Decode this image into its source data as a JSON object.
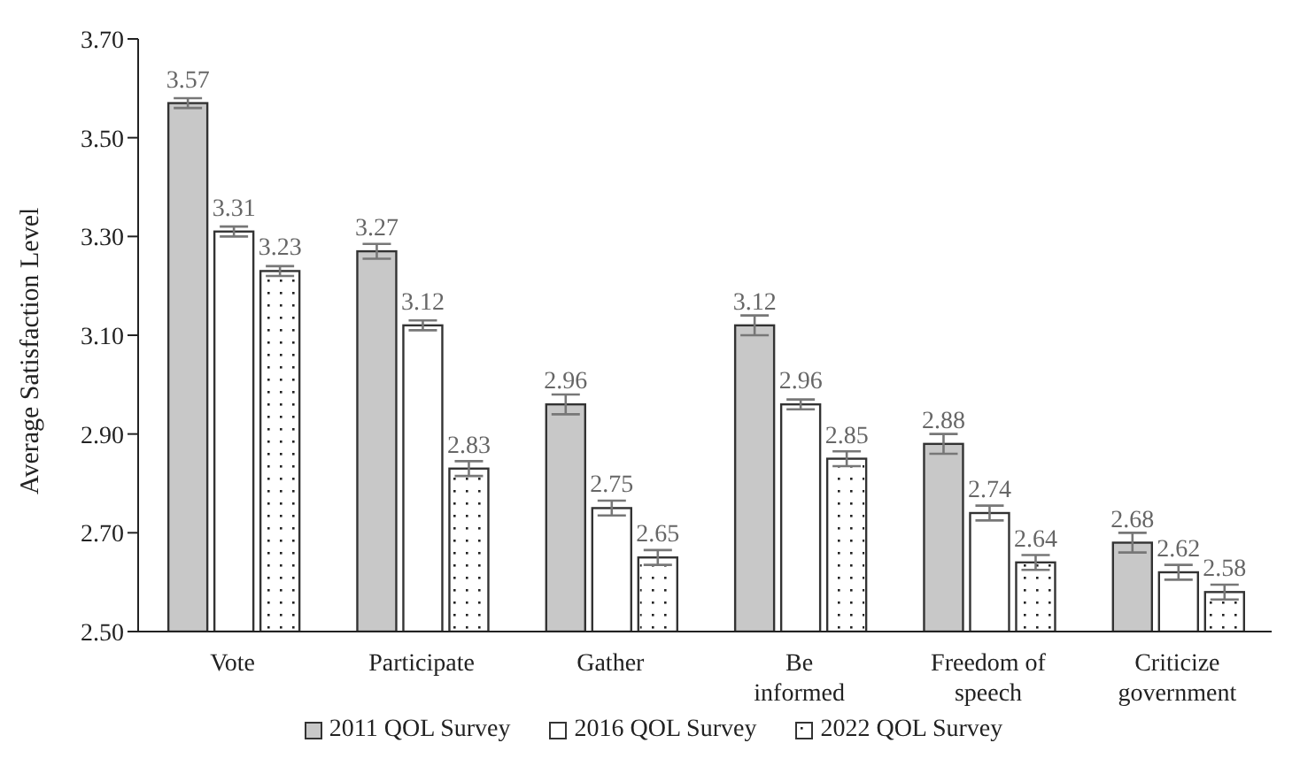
{
  "chart_data": {
    "type": "bar",
    "ylabel": "Average Satisfaction Level",
    "categories": [
      "Vote",
      "Participate",
      "Gather",
      "Be informed",
      "Freedom of speech",
      "Criticize government"
    ],
    "series": [
      {
        "name": "2011 QOL Survey",
        "color": "#c8c8c8",
        "values": [
          3.57,
          3.27,
          2.96,
          3.12,
          2.88,
          2.68
        ],
        "errors": [
          0.01,
          0.015,
          0.02,
          0.02,
          0.02,
          0.02
        ]
      },
      {
        "name": "2016 QOL Survey",
        "color": "#ffffff",
        "values": [
          3.31,
          3.12,
          2.75,
          2.96,
          2.74,
          2.62
        ],
        "errors": [
          0.01,
          0.01,
          0.015,
          0.01,
          0.015,
          0.015
        ]
      },
      {
        "name": "2022 QOL Survey",
        "color": "#ffffff",
        "values": [
          3.23,
          2.83,
          2.65,
          2.85,
          2.64,
          2.58
        ],
        "errors": [
          0.01,
          0.015,
          0.015,
          0.015,
          0.015,
          0.015
        ]
      }
    ],
    "ylim": [
      2.5,
      3.7
    ],
    "yticks": [
      {
        "value": 2.5,
        "label": "2.50"
      },
      {
        "value": 2.7,
        "label": "2.70"
      },
      {
        "value": 2.9,
        "label": "2.90"
      },
      {
        "value": 3.1,
        "label": "3.10"
      },
      {
        "value": 3.3,
        "label": "3.30"
      },
      {
        "value": 3.5,
        "label": "3.50"
      },
      {
        "value": 3.7,
        "label": "3.70"
      }
    ],
    "grid": false,
    "legend": "bottom",
    "data_labels": true
  }
}
